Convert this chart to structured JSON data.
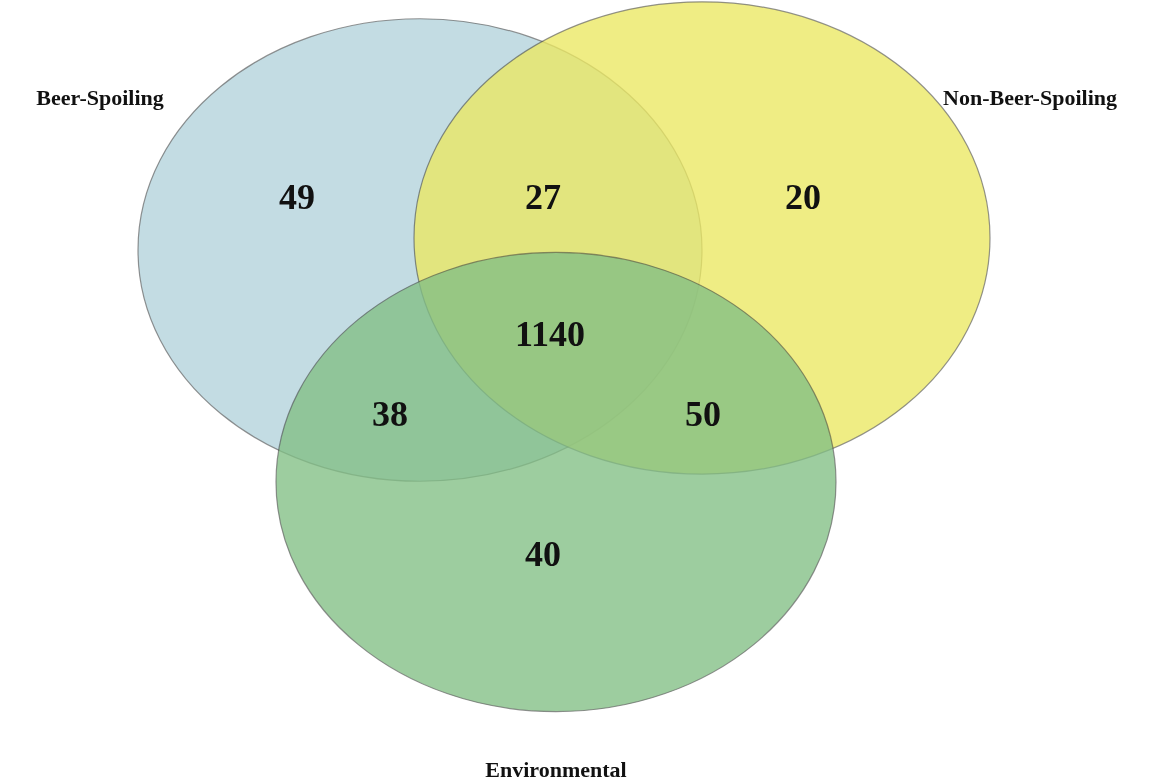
{
  "chart_data": {
    "type": "other",
    "categories": [
      null,
      null,
      null,
      null,
      null,
      null,
      null
    ],
    "values": [
      49,
      27,
      20,
      1140,
      38,
      50,
      40
    ],
    "data_labels": true,
    "annotations": [
      "Beer-Spoiling",
      "Non-Beer-Spoiling",
      "Environmental"
    ]
  }
}
